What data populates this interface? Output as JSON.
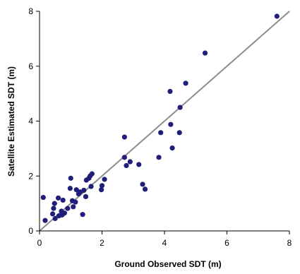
{
  "chart_data": {
    "type": "scatter",
    "title": "",
    "xlabel": "Ground Observed SDT (m)",
    "ylabel": "Satellite Estimated SDT (m)",
    "xlim": [
      0,
      8
    ],
    "ylim": [
      0,
      8
    ],
    "x_ticks": [
      0,
      2,
      4,
      6,
      8
    ],
    "y_ticks": [
      0,
      2,
      4,
      6,
      8
    ],
    "x_tick_labels": [
      "0",
      "2",
      "4",
      "6",
      "8"
    ],
    "y_tick_labels": [
      "0",
      "2",
      "4",
      "6",
      "8"
    ],
    "grid": false,
    "legend": "none",
    "reference_line": {
      "type": "1:1",
      "from": [
        0,
        0
      ],
      "to": [
        8,
        8
      ]
    },
    "series": [
      {
        "points": [
          [
            0.12,
            1.22
          ],
          [
            0.18,
            0.38
          ],
          [
            0.42,
            0.62
          ],
          [
            0.45,
            0.82
          ],
          [
            0.48,
            1.0
          ],
          [
            0.5,
            0.45
          ],
          [
            0.6,
            1.2
          ],
          [
            0.62,
            0.55
          ],
          [
            0.7,
            0.72
          ],
          [
            0.72,
            0.58
          ],
          [
            0.75,
            1.12
          ],
          [
            0.8,
            0.65
          ],
          [
            0.9,
            0.82
          ],
          [
            0.98,
            1.55
          ],
          [
            1.0,
            1.92
          ],
          [
            1.05,
            1.1
          ],
          [
            1.08,
            0.88
          ],
          [
            1.15,
            1.05
          ],
          [
            1.18,
            1.5
          ],
          [
            1.25,
            1.35
          ],
          [
            1.3,
            1.42
          ],
          [
            1.38,
            0.6
          ],
          [
            1.42,
            1.48
          ],
          [
            1.48,
            1.25
          ],
          [
            1.5,
            1.85
          ],
          [
            1.58,
            1.92
          ],
          [
            1.62,
            2.0
          ],
          [
            1.65,
            1.62
          ],
          [
            1.68,
            2.08
          ],
          [
            1.98,
            1.5
          ],
          [
            2.0,
            1.65
          ],
          [
            2.08,
            1.88
          ],
          [
            2.72,
            3.42
          ],
          [
            2.72,
            2.68
          ],
          [
            2.78,
            2.38
          ],
          [
            2.9,
            2.52
          ],
          [
            3.18,
            2.42
          ],
          [
            3.3,
            1.7
          ],
          [
            3.38,
            1.52
          ],
          [
            3.82,
            2.68
          ],
          [
            3.88,
            3.58
          ],
          [
            4.18,
            5.08
          ],
          [
            4.2,
            3.88
          ],
          [
            4.25,
            3.02
          ],
          [
            4.48,
            3.58
          ],
          [
            4.5,
            4.5
          ],
          [
            4.68,
            5.38
          ],
          [
            5.3,
            6.48
          ],
          [
            7.6,
            7.82
          ]
        ]
      }
    ]
  },
  "colors": {
    "points": "#1f1f7a",
    "reference_line": "#8c8c8c",
    "axes": "#000000"
  }
}
